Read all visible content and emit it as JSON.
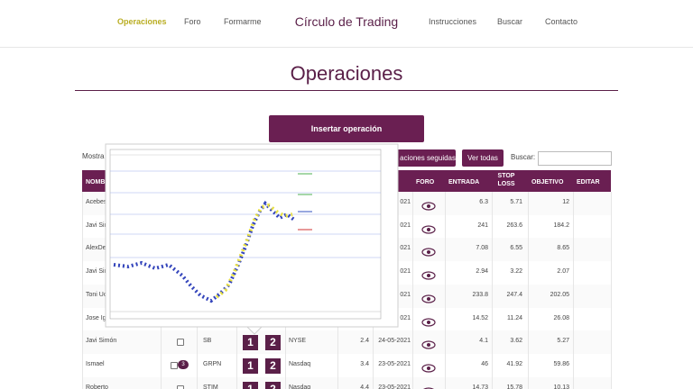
{
  "nav": {
    "left": [
      "Operaciones",
      "Foro",
      "Formarme"
    ],
    "brand": "Círculo de Trading",
    "right": [
      "Instrucciones",
      "Buscar",
      "Contacto"
    ]
  },
  "page": {
    "title": "Operaciones",
    "insert_button": "Insertar operación",
    "show_label": "Mostra",
    "followed_button": "aciones seguidas",
    "all_button": "Ver todas",
    "search_label": "Buscar:"
  },
  "table": {
    "headers": {
      "name": "NOMBRE",
      "foro": "FORO",
      "entrada": "ENTRADA",
      "stop_loss": "STOP LOSS",
      "objetivo": "OBJETIVO",
      "editar": "EDITAR"
    },
    "step_icons": [
      "1",
      "2"
    ],
    "rows": [
      {
        "name": "Acebes",
        "date": "021",
        "entrada": "6.3",
        "stop_loss": "5.71",
        "objetivo": "12"
      },
      {
        "name": "Javi Sim",
        "date": "021",
        "entrada": "241",
        "stop_loss": "263.6",
        "objetivo": "184.2"
      },
      {
        "name": "AlexDe",
        "date": "021",
        "entrada": "7.08",
        "stop_loss": "6.55",
        "objetivo": "8.65"
      },
      {
        "name": "Javi Sim",
        "date": "021",
        "entrada": "2.94",
        "stop_loss": "3.22",
        "objetivo": "2.07"
      },
      {
        "name": "Toni Uc",
        "date": "021",
        "entrada": "233.8",
        "stop_loss": "247.4",
        "objetivo": "202.05"
      },
      {
        "name": "Jose Ig",
        "date": "021",
        "entrada": "14.52",
        "stop_loss": "11.24",
        "objetivo": "26.08"
      },
      {
        "name": "Javi Simón",
        "symbol": "SB",
        "market": "NYSE",
        "ratio": "2.4",
        "date": "24-05-2021",
        "entrada": "4.1",
        "stop_loss": "3.62",
        "objetivo": "5.27"
      },
      {
        "name": "Ismael",
        "badge": "3",
        "symbol": "GRPN",
        "market": "Nasdaq",
        "ratio": "3.4",
        "date": "23-05-2021",
        "entrada": "46",
        "stop_loss": "41.92",
        "objetivo": "59.86"
      },
      {
        "name": "Roberto",
        "symbol": "STIM",
        "market": "Nasdaq",
        "ratio": "4.4",
        "date": "23-05-2021",
        "entrada": "14.73",
        "stop_loss": "15.78",
        "objetivo": "10.13"
      }
    ]
  }
}
